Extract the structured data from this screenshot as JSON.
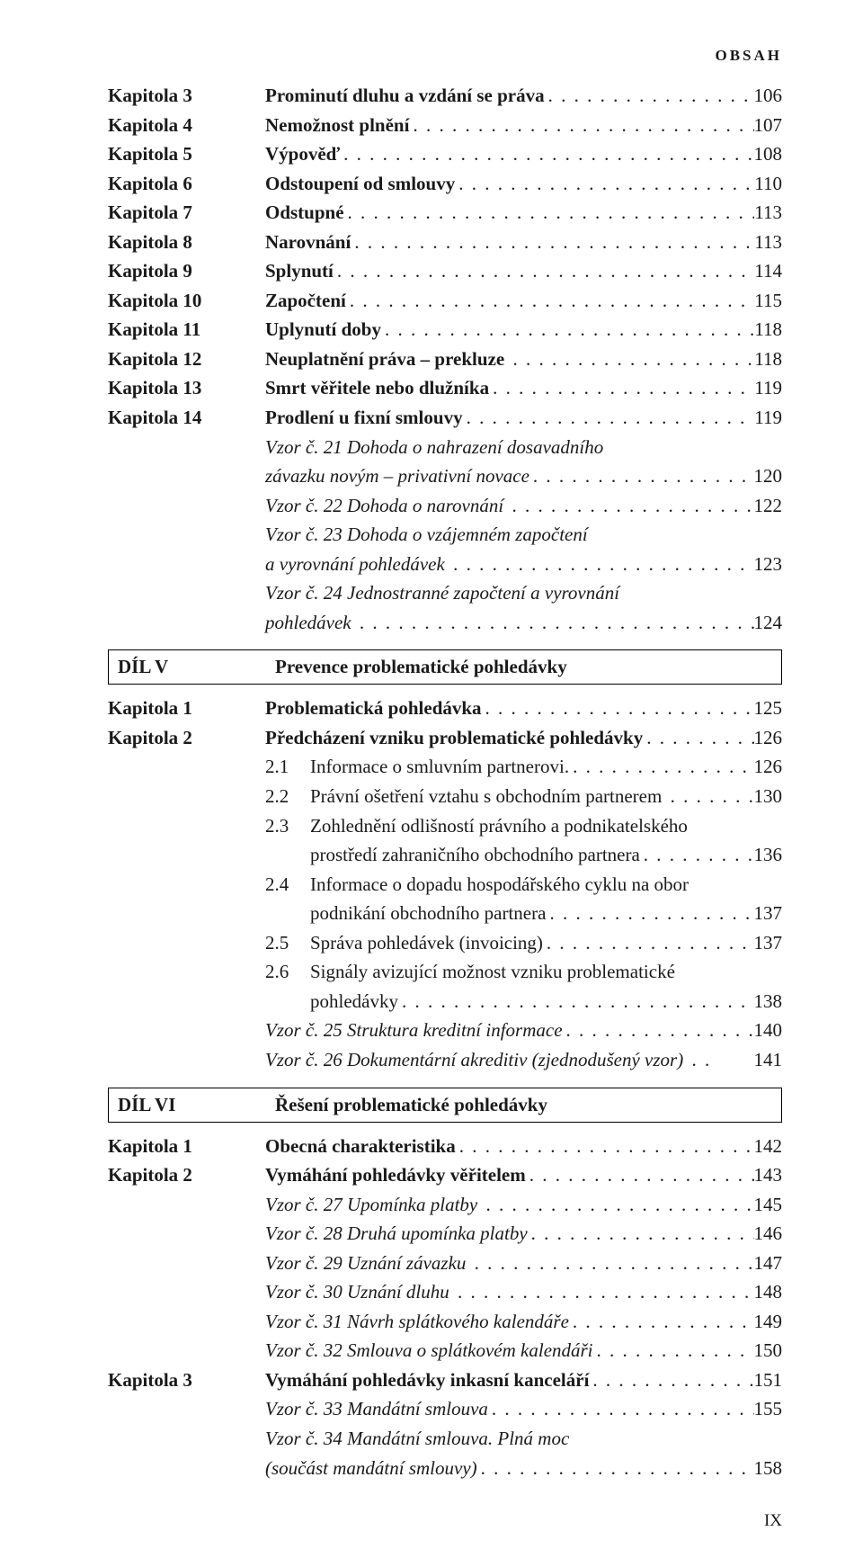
{
  "header": "OBSAH",
  "footer": "IX",
  "dil_v": {
    "label": "DÍL V",
    "title": "Prevence problematické pohledávky"
  },
  "dil_vi": {
    "label": "DÍL VI",
    "title": "Řešení problematické pohledávky"
  },
  "block1": [
    {
      "label": "Kapitola 3",
      "title": "Prominutí dluhu a vzdání se práva",
      "page": "106",
      "bold": true
    },
    {
      "label": "Kapitola 4",
      "title": "Nemožnost plnění",
      "page": "107",
      "bold": true
    },
    {
      "label": "Kapitola 5",
      "title": "Výpověď",
      "page": "108",
      "bold": true
    },
    {
      "label": "Kapitola 6",
      "title": "Odstoupení od smlouvy",
      "page": "110",
      "bold": true
    },
    {
      "label": "Kapitola 7",
      "title": "Odstupné",
      "page": "113",
      "bold": true
    },
    {
      "label": "Kapitola 8",
      "title": "Narovnání",
      "page": "113",
      "bold": true
    },
    {
      "label": "Kapitola 9",
      "title": "Splynutí",
      "page": "114",
      "bold": true
    },
    {
      "label": "Kapitola 10",
      "title": "Započtení",
      "page": "115",
      "bold": true
    },
    {
      "label": "Kapitola 11",
      "title": "Uplynutí doby",
      "page": "118",
      "bold": true
    },
    {
      "label": "Kapitola 12",
      "title": "Neuplatnění práva – prekluze ",
      "page": "118",
      "bold": true
    },
    {
      "label": "Kapitola 13",
      "title": "Smrt věřitele nebo dlužníka",
      "page": "119",
      "bold": true
    },
    {
      "label": "Kapitola 14",
      "title": "Prodlení u fixní smlouvy",
      "page": "119",
      "bold": true
    }
  ],
  "block1_sub": [
    {
      "title": "Vzor č. 21 Dohoda o nahrazení dosavadního",
      "page": "",
      "italic": true,
      "cont": true
    },
    {
      "title": "závazku novým – privativní novace",
      "page": "120",
      "italic": true
    },
    {
      "title": "Vzor č. 22 Dohoda o narovnání ",
      "page": "122",
      "italic": true
    },
    {
      "title": "Vzor č. 23 Dohoda o vzájemném započtení",
      "page": "",
      "italic": true,
      "cont": true
    },
    {
      "title": "a vyrovnání pohledávek ",
      "page": "123",
      "italic": true
    },
    {
      "title": "Vzor č. 24 Jednostranné započtení a vyrovnání",
      "page": "",
      "italic": true,
      "cont": true
    },
    {
      "title": "pohledávek ",
      "page": "124",
      "italic": true
    }
  ],
  "block2": [
    {
      "label": "Kapitola 1",
      "title": "Problematická pohledávka",
      "page": "125",
      "bold": true
    },
    {
      "label": "Kapitola 2",
      "title": "Předcházení vzniku problematické pohledávky",
      "page": "126",
      "bold": true
    }
  ],
  "block2_sub": [
    {
      "num": "2.1",
      "title": "Informace o smluvním partnerovi.",
      "page": "126"
    },
    {
      "num": "2.2",
      "title": "Právní ošetření vztahu s obchodním partnerem ",
      "page": "130"
    },
    {
      "num": "2.3",
      "title": "Zohlednění odlišností právního a podnikatelského",
      "page": "",
      "cont": true
    },
    {
      "num": "",
      "title": "prostředí zahraničního obchodního partnera",
      "page": "136",
      "indent2": true
    },
    {
      "num": "2.4",
      "title": "Informace o dopadu hospodářského cyklu na obor",
      "page": "",
      "cont": true
    },
    {
      "num": "",
      "title": "podnikání obchodního partnera",
      "page": "137",
      "indent2": true
    },
    {
      "num": "2.5",
      "title": "Správa pohledávek (invoicing)",
      "page": "137"
    },
    {
      "num": "2.6",
      "title": "Signály avizující možnost vzniku problematické",
      "page": "",
      "cont": true
    },
    {
      "num": "",
      "title": "pohledávky",
      "page": "138",
      "indent2": true
    }
  ],
  "block2_vzor": [
    {
      "title": "Vzor č. 25 Struktura kreditní informace",
      "page": "140",
      "italic": true
    },
    {
      "title": "Vzor č. 26 Dokumentární akreditiv (zjednodušený vzor) ",
      "page": "141",
      "italic": true,
      "short": true
    }
  ],
  "block3": [
    {
      "label": "Kapitola 1",
      "title": "Obecná charakteristika",
      "page": "142",
      "bold": true
    },
    {
      "label": "Kapitola 2",
      "title": "Vymáhání pohledávky věřitelem",
      "page": "143",
      "bold": true
    }
  ],
  "block3_sub": [
    {
      "title": "Vzor č. 27 Upomínka platby ",
      "page": "145",
      "italic": true
    },
    {
      "title": "Vzor č. 28 Druhá upomínka platby",
      "page": "146",
      "italic": true
    },
    {
      "title": "Vzor č. 29 Uznání závazku ",
      "page": "147",
      "italic": true
    },
    {
      "title": "Vzor č. 30 Uznání dluhu ",
      "page": "148",
      "italic": true
    },
    {
      "title": "Vzor č. 31 Návrh splátkového kalendáře",
      "page": "149",
      "italic": true
    },
    {
      "title": "Vzor č. 32 Smlouva o splátkovém kalendáři",
      "page": "150",
      "italic": true
    }
  ],
  "block3b": [
    {
      "label": "Kapitola 3",
      "title": "Vymáhání pohledávky inkasní kanceláří",
      "page": "151",
      "bold": true
    }
  ],
  "block3b_sub": [
    {
      "title": "Vzor č. 33 Mandátní smlouva",
      "page": "155",
      "italic": true
    },
    {
      "title": "Vzor č. 34 Mandátní smlouva. Plná moc",
      "page": "",
      "italic": true,
      "cont": true
    },
    {
      "title": "(součást mandátní smlouvy)",
      "page": "158",
      "italic": true
    }
  ]
}
